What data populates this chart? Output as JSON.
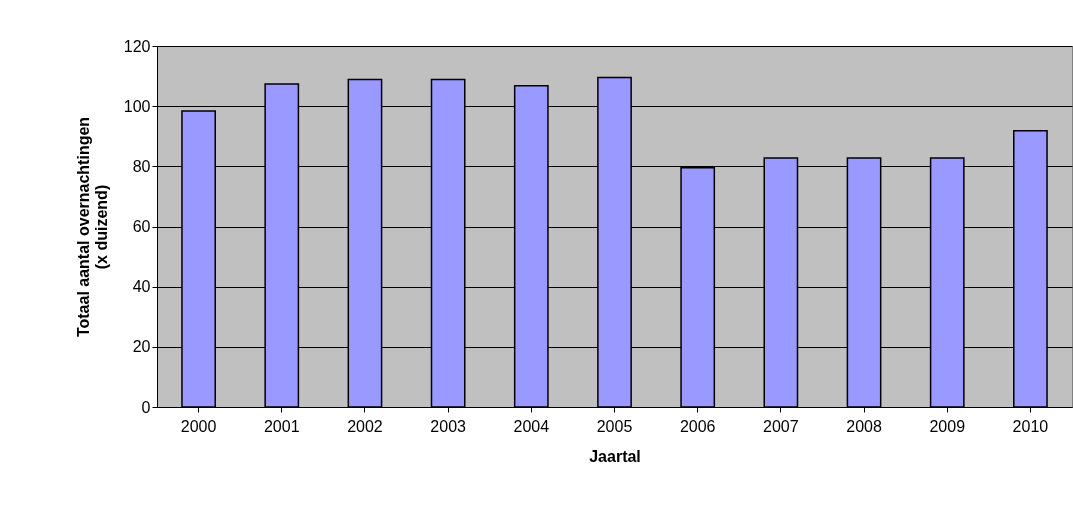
{
  "chart_data": {
    "type": "bar",
    "xlabel": "Jaartal",
    "ylabel": "Totaal aantal overnachtingen (x duizend)",
    "categories": [
      "2000",
      "2001",
      "2002",
      "2003",
      "2004",
      "2005",
      "2006",
      "2007",
      "2008",
      "2009",
      "2010"
    ],
    "values": [
      98.4,
      107.4,
      108.9,
      108.9,
      106.8,
      109.5,
      79.5,
      82.8,
      82.8,
      82.8,
      91.8
    ],
    "color": "#9999ff",
    "ylim": [
      0,
      120
    ],
    "yticks": [
      0,
      20,
      40,
      60,
      80,
      100,
      120
    ],
    "grid": "y"
  }
}
